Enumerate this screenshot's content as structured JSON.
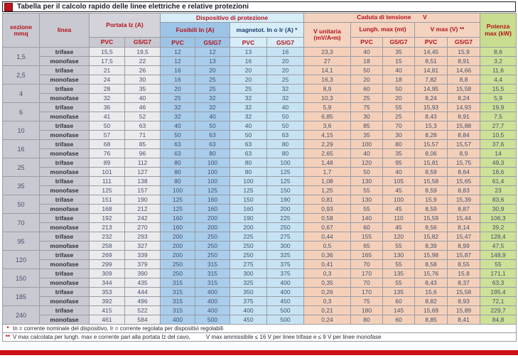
{
  "title": "Tabella per il calcolo rapido delle linee elettriche e relative protezioni",
  "colors": {
    "accent_red": "#bc151b",
    "header_text_red": "#b5121b",
    "magnetot_text_navy": "#1e3f70",
    "gray_bg": "#c9c9d1",
    "fusibili_blue_bg": "#a9cdeb",
    "magnetot_blue_bg": "#c6e3f4",
    "caduta_salmon_bg": "#f4d0ba",
    "potenza_green_bg": "#cde198",
    "bottom_bar_red": "#cc1016"
  },
  "header": {
    "sezione_line1": "sezione",
    "sezione_line2": "mmq",
    "linea": "linea",
    "portata": "Portata Iz (A)",
    "dispositivo": "Dispositivo di protezione",
    "fusibili": "Fusibili In (A)",
    "magnetot": "magnetot. In o Ir (A) *",
    "caduta": "Caduta di tensione",
    "caduta_v": "V",
    "v_unitaria_line1": "V unitaria",
    "v_unitaria_line2": "(mV/A•m)",
    "lungh": "Lungh. max   (mt)",
    "vmax": "V max (V) **",
    "potenza_line1": "Potenza",
    "potenza_line2": "max (kW)",
    "pvc": "PVC",
    "g5g7": "G5/G7"
  },
  "rows": [
    {
      "sezione": "1,5",
      "lines": [
        {
          "linea": "trifase",
          "values": [
            "15,5",
            "19,5",
            "12",
            "12",
            "13",
            "16",
            "23,3",
            "40",
            "35",
            "14,45",
            "15,9",
            "8,6"
          ]
        },
        {
          "linea": "monofase",
          "values": [
            "17,5",
            "22",
            "12",
            "13",
            "16",
            "20",
            "27",
            "18",
            "15",
            "8,51",
            "8,91",
            "3,2"
          ]
        }
      ]
    },
    {
      "sezione": "2,5",
      "lines": [
        {
          "linea": "trifase",
          "values": [
            "21",
            "26",
            "16",
            "20",
            "20",
            "20",
            "14,1",
            "50",
            "40",
            "14,81",
            "14,66",
            "11,6"
          ]
        },
        {
          "linea": "monofase",
          "values": [
            "24",
            "30",
            "16",
            "25",
            "20",
            "25",
            "16,3",
            "20",
            "18",
            "7,82",
            "8,8",
            "4,4"
          ]
        }
      ]
    },
    {
      "sezione": "4",
      "lines": [
        {
          "linea": "trifase",
          "values": [
            "28",
            "35",
            "20",
            "25",
            "25",
            "32",
            "8,9",
            "60",
            "50",
            "14,95",
            "15,58",
            "15,5"
          ]
        },
        {
          "linea": "monofase",
          "values": [
            "32",
            "40",
            "25",
            "32",
            "32",
            "32",
            "10,3",
            "25",
            "20",
            "8,24",
            "8,24",
            "5,9"
          ]
        }
      ]
    },
    {
      "sezione": "6",
      "lines": [
        {
          "linea": "trifase",
          "values": [
            "36",
            "46",
            "32",
            "32",
            "32",
            "40",
            "5,9",
            "75",
            "55",
            "15,93",
            "14,93",
            "19,9"
          ]
        },
        {
          "linea": "monofase",
          "values": [
            "41",
            "52",
            "32",
            "40",
            "32",
            "50",
            "6,85",
            "30",
            "25",
            "8,43",
            "8,91",
            "7,5"
          ]
        }
      ]
    },
    {
      "sezione": "10",
      "lines": [
        {
          "linea": "trifase",
          "values": [
            "50",
            "63",
            "40",
            "50",
            "40",
            "50",
            "3,6",
            "85",
            "70",
            "15,3",
            "15,88",
            "27,7"
          ]
        },
        {
          "linea": "monofase",
          "values": [
            "57",
            "71",
            "50",
            "63",
            "50",
            "63",
            "4,15",
            "35",
            "30",
            "8,28",
            "8,84",
            "10,5"
          ]
        }
      ]
    },
    {
      "sezione": "16",
      "lines": [
        {
          "linea": "trifase",
          "values": [
            "68",
            "85",
            "63",
            "63",
            "63",
            "80",
            "2,29",
            "100",
            "80",
            "15,57",
            "15,57",
            "37,6"
          ]
        },
        {
          "linea": "monofase",
          "values": [
            "76",
            "96",
            "63",
            "80",
            "63",
            "80",
            "2,65",
            "40",
            "35",
            "8,06",
            "8,9",
            "14"
          ]
        }
      ]
    },
    {
      "sezione": "25",
      "lines": [
        {
          "linea": "trifase",
          "values": [
            "89",
            "112",
            "80",
            "100",
            "80",
            "100",
            "1,48",
            "120",
            "95",
            "15,81",
            "15,75",
            "49,3"
          ]
        },
        {
          "linea": "monofase",
          "values": [
            "101",
            "127",
            "80",
            "100",
            "80",
            "125",
            "1,7",
            "50",
            "40",
            "8,59",
            "8,64",
            "18,6"
          ]
        }
      ]
    },
    {
      "sezione": "35",
      "lines": [
        {
          "linea": "trifase",
          "values": [
            "111",
            "138",
            "80",
            "100",
            "100",
            "125",
            "1,08",
            "130",
            "105",
            "15,58",
            "15,65",
            "61,4"
          ]
        },
        {
          "linea": "monofase",
          "values": [
            "125",
            "157",
            "100",
            "125",
            "125",
            "150",
            "1,25",
            "55",
            "45",
            "8,59",
            "8,83",
            "23"
          ]
        }
      ]
    },
    {
      "sezione": "50",
      "lines": [
        {
          "linea": "trifase",
          "values": [
            "151",
            "190",
            "125",
            "160",
            "150",
            "190",
            "0,81",
            "130",
            "100",
            "15,9",
            "15,39",
            "83,6"
          ]
        },
        {
          "linea": "monofase",
          "values": [
            "168",
            "212",
            "125",
            "160",
            "160",
            "200",
            "0,93",
            "55",
            "45",
            "8,59",
            "8,87",
            "30,9"
          ]
        }
      ]
    },
    {
      "sezione": "70",
      "lines": [
        {
          "linea": "trifase",
          "values": [
            "192",
            "242",
            "160",
            "200",
            "190",
            "225",
            "0,58",
            "140",
            "110",
            "15,59",
            "15,44",
            "106,3"
          ]
        },
        {
          "linea": "monofase",
          "values": [
            "213",
            "270",
            "160",
            "200",
            "200",
            "250",
            "0,67",
            "60",
            "45",
            "8,56",
            "8,14",
            "39,2"
          ]
        }
      ]
    },
    {
      "sezione": "95",
      "lines": [
        {
          "linea": "trifase",
          "values": [
            "232",
            "293",
            "200",
            "250",
            "225",
            "275",
            "0,44",
            "155",
            "120",
            "15,82",
            "15,47",
            "128,4"
          ]
        },
        {
          "linea": "monofase",
          "values": [
            "258",
            "327",
            "200",
            "250",
            "250",
            "300",
            "0,5",
            "65",
            "55",
            "8,39",
            "8,99",
            "47,5"
          ]
        }
      ]
    },
    {
      "sezione": "120",
      "lines": [
        {
          "linea": "trifase",
          "values": [
            "269",
            "339",
            "200",
            "250",
            "250",
            "325",
            "0,36",
            "165",
            "130",
            "15,98",
            "15,87",
            "148,9"
          ]
        },
        {
          "linea": "monofase",
          "values": [
            "299",
            "379",
            "250",
            "315",
            "275",
            "375",
            "0,41",
            "70",
            "55",
            "8,58",
            "8,55",
            "55"
          ]
        }
      ]
    },
    {
      "sezione": "150",
      "lines": [
        {
          "linea": "trifase",
          "values": [
            "309",
            "390",
            "250",
            "315",
            "300",
            "375",
            "0,3",
            "170",
            "135",
            "15,76",
            "15,8",
            "171,1"
          ]
        },
        {
          "linea": "monofase",
          "values": [
            "344",
            "435",
            "315",
            "315",
            "325",
            "400",
            "0,35",
            "70",
            "55",
            "8,43",
            "8,37",
            "63,3"
          ]
        }
      ]
    },
    {
      "sezione": "185",
      "lines": [
        {
          "linea": "trifase",
          "values": [
            "353",
            "444",
            "315",
            "400",
            "350",
            "400",
            "0,26",
            "170",
            "135",
            "15,6",
            "15,58",
            "195,4"
          ]
        },
        {
          "linea": "monofase",
          "values": [
            "392",
            "496",
            "315",
            "400",
            "375",
            "450",
            "0,3",
            "75",
            "60",
            "8,82",
            "8,93",
            "72,1"
          ]
        }
      ]
    },
    {
      "sezione": "240",
      "lines": [
        {
          "linea": "trifase",
          "values": [
            "415",
            "522",
            "315",
            "400",
            "400",
            "500",
            "0,21",
            "180",
            "145",
            "15,69",
            "15,89",
            "229,7"
          ]
        },
        {
          "linea": "monofase",
          "values": [
            "461",
            "584",
            "400",
            "500",
            "450",
            "500",
            "0,24",
            "80",
            "60",
            "8,85",
            "8,41",
            "84,8"
          ]
        }
      ]
    }
  ],
  "footnotes": [
    {
      "marker": "*",
      "text_a": "In = corrente nominale del dispositivo, Ir = corrente regolata per dispositivi regolabili",
      "text_b": ""
    },
    {
      "marker": "**",
      "text_a": "V max calcolata per lungh. max e corrente pari alla portata Iz del cavo,",
      "text_b": "V max ammissibile ≤ 16 V per linee trifase e ≤ 9 V per linee monofase"
    }
  ]
}
